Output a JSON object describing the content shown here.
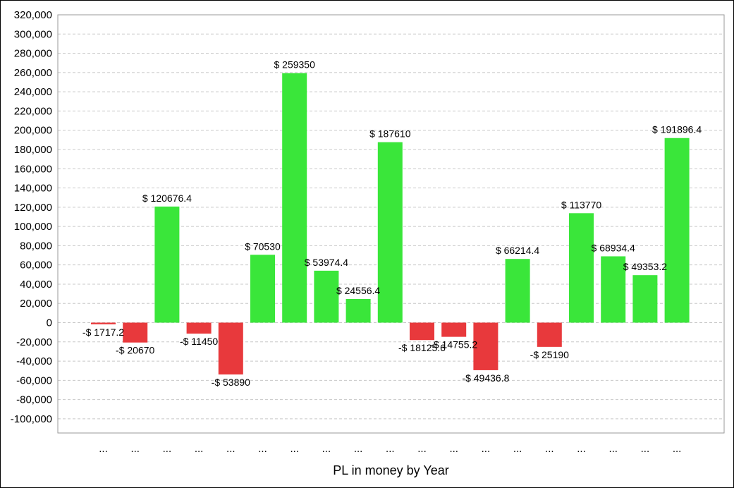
{
  "chart_data": {
    "type": "bar",
    "title": "",
    "xlabel": "PL in money by Year",
    "ylabel": "",
    "ylim": [
      -100000,
      320000
    ],
    "ytick_step": 20000,
    "yticks": [
      "-100,000",
      "-80,000",
      "-60,000",
      "-40,000",
      "-20,000",
      "0",
      "20,000",
      "40,000",
      "60,000",
      "80,000",
      "100,000",
      "120,000",
      "140,000",
      "160,000",
      "180,000",
      "200,000",
      "220,000",
      "240,000",
      "260,000",
      "280,000",
      "300,000",
      "320,000"
    ],
    "grid": true,
    "legend": "none",
    "categories": [
      "...",
      "...",
      "...",
      "...",
      "...",
      "...",
      "...",
      "...",
      "...",
      "...",
      "...",
      "...",
      "...",
      "...",
      "...",
      "...",
      "...",
      "...",
      "..."
    ],
    "values": [
      -1717.2,
      -20670,
      120676.4,
      -11450,
      -53890,
      70530,
      259350,
      53974.4,
      24556.4,
      187610,
      -18125.6,
      -14755.2,
      -49436.8,
      66214.4,
      -25190,
      113770,
      68934.4,
      49353.2,
      191896.4
    ],
    "data_labels": [
      "-$ 1717.2",
      "-$ 20670",
      "$ 120676.4",
      "-$ 11450",
      "-$ 53890",
      "$ 70530",
      "$ 259350",
      "$ 53974.4",
      "$ 24556.4",
      "$ 187610",
      "-$ 18125.6",
      "-$ 14755.2",
      "-$ 49436.8",
      "$ 66214.4",
      "-$ 25190",
      "$ 113770",
      "$ 68934.4",
      "$ 49353.2",
      "$ 191896.4"
    ],
    "colors": {
      "positive": "#3ae63a",
      "negative": "#e8393c",
      "grid": "#c8c8c8",
      "axis": "#999999"
    }
  }
}
